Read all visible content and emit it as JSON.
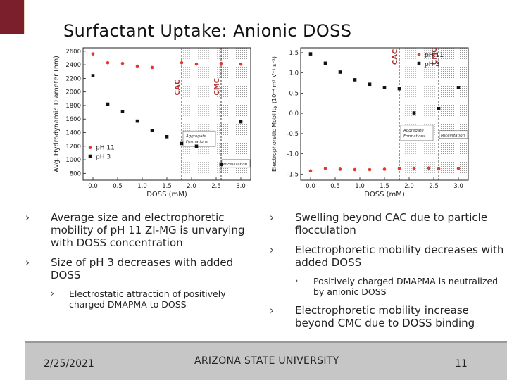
{
  "slide": {
    "title": "Surfactant Uptake: Anionic DOSS",
    "date": "2/25/2021",
    "university": "ARIZONA STATE UNIVERSITY",
    "page_number": "11"
  },
  "colors": {
    "accent": "#7a1f2b",
    "ph11": "#e03a2e",
    "ph3": "#111111",
    "annotation": "#b03030",
    "footer": "#c6c6c6"
  },
  "bullets": {
    "left": [
      {
        "text": "Average size and electrophoretic mobility of pH 11 ZI-MG is unvarying with DOSS concentration",
        "subs": []
      },
      {
        "text": "Size of pH 3 decreases with added DOSS",
        "subs": [
          "Electrostatic attraction of positively charged DMAPMA to DOSS"
        ]
      }
    ],
    "right": [
      {
        "text": "Swelling beyond CAC due to particle flocculation",
        "subs": []
      },
      {
        "text": "Electrophoretic mobility decreases with added DOSS",
        "subs": [
          "Positively charged DMAPMA is neutralized by anionic DOSS"
        ]
      },
      {
        "text": "Electrophoretic mobility increase beyond CMC due to DOSS binding",
        "subs": []
      }
    ]
  },
  "chart_data": [
    {
      "type": "scatter",
      "xlabel": "DOSS (mM)",
      "ylabel": "Avg. Hydrodynamic Diameter (nm)",
      "xlim": [
        -0.2,
        3.2
      ],
      "ylim": [
        700,
        2650
      ],
      "xticks": [
        "0.0",
        "0.5",
        "1.0",
        "1.5",
        "2.0",
        "2.5",
        "3.0"
      ],
      "yticks": [
        "800",
        "1000",
        "1200",
        "1400",
        "1600",
        "1800",
        "2000",
        "2200",
        "2400",
        "2600"
      ],
      "legend": [
        "pH 11",
        "pH 3"
      ],
      "legend_position": "lower-left",
      "regions": {
        "cac": 1.8,
        "cmc": 2.6,
        "cac_label": "CAC",
        "cmc_label": "CMC"
      },
      "annotations": [
        "Aggregate Formations",
        "Micellization"
      ],
      "series": [
        {
          "name": "pH 11",
          "x": [
            0.0,
            0.3,
            0.6,
            0.9,
            1.2,
            1.8,
            2.1,
            2.6,
            3.0
          ],
          "y": [
            2560,
            2430,
            2420,
            2380,
            2360,
            2430,
            2410,
            2420,
            2410
          ]
        },
        {
          "name": "pH 3",
          "x": [
            0.0,
            0.3,
            0.6,
            0.9,
            1.2,
            1.5,
            1.8,
            2.1,
            2.6,
            3.0
          ],
          "y": [
            2240,
            1820,
            1710,
            1570,
            1430,
            1340,
            1240,
            1200,
            930,
            1560
          ]
        }
      ]
    },
    {
      "type": "scatter",
      "xlabel": "DOSS (mM)",
      "ylabel": "Electrophoretic Mobility (10^-4 m^2 V^-1 s^-1)",
      "xlim": [
        -0.2,
        3.2
      ],
      "ylim": [
        -1.65,
        1.62
      ],
      "xticks": [
        "0.0",
        "0.5",
        "1.0",
        "1.5",
        "2.0",
        "2.5",
        "3.0"
      ],
      "yticks": [
        "-1.5",
        "-1.0",
        "-0.5",
        "0.0",
        "0.5",
        "1.0",
        "1.5"
      ],
      "legend": [
        "pH 11",
        "pH 3"
      ],
      "legend_position": "top-right",
      "regions": {
        "cac": 1.8,
        "cmc": 2.6,
        "cac_label": "CAC",
        "cmc_label": "CMC"
      },
      "annotations": [
        "Aggregate Formations",
        "Micellization"
      ],
      "series": [
        {
          "name": "pH 11",
          "x": [
            0.0,
            0.3,
            0.6,
            0.9,
            1.2,
            1.5,
            1.8,
            2.1,
            2.4,
            2.6,
            3.0
          ],
          "y": [
            -1.42,
            -1.36,
            -1.38,
            -1.39,
            -1.39,
            -1.38,
            -1.36,
            -1.36,
            -1.35,
            -1.37,
            -1.36
          ]
        },
        {
          "name": "pH 3",
          "x": [
            0.0,
            0.3,
            0.6,
            0.9,
            1.2,
            1.5,
            1.8,
            2.1,
            2.6,
            3.0
          ],
          "y": [
            1.47,
            1.24,
            1.02,
            0.83,
            0.72,
            0.64,
            0.61,
            0.01,
            0.12,
            0.64
          ]
        }
      ]
    }
  ]
}
